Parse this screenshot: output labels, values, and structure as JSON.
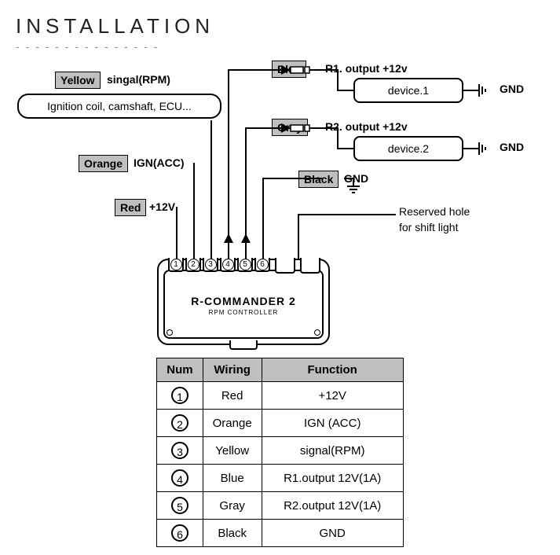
{
  "title": "INSTALLATION",
  "diagram": {
    "yellow": {
      "label": "Yellow",
      "desc": "singal(RPM)",
      "box": "Ignition coil, camshaft, ECU..."
    },
    "orange": {
      "label": "Orange",
      "desc": "IGN(ACC)"
    },
    "red": {
      "label": "Red",
      "desc": "+12V"
    },
    "blue": {
      "label": "Blue",
      "desc": "R1. output +12v",
      "device": "device.1",
      "gnd": "GND"
    },
    "gray": {
      "label": "Gray",
      "desc": "R2. output +12v",
      "device": "device.2",
      "gnd": "GND"
    },
    "black": {
      "label": "Black",
      "desc": "GND"
    },
    "reserved": "Reserved hole for shift light",
    "controller": {
      "title": "R-COMMANDER 2",
      "subtitle": "RPM CONTROLLER"
    },
    "ports": [
      "1",
      "2",
      "3",
      "4",
      "5",
      "6"
    ]
  },
  "table": {
    "headers": [
      "Num",
      "Wiring",
      "Function"
    ],
    "rows": [
      {
        "num": "1",
        "wiring": "Red",
        "function": "+12V"
      },
      {
        "num": "2",
        "wiring": "Orange",
        "function": "IGN (ACC)"
      },
      {
        "num": "3",
        "wiring": "Yellow",
        "function": "signal(RPM)"
      },
      {
        "num": "4",
        "wiring": "Blue",
        "function": "R1.output 12V(1A)"
      },
      {
        "num": "5",
        "wiring": "Gray",
        "function": "R2.output 12V(1A)"
      },
      {
        "num": "6",
        "wiring": "Black",
        "function": "GND"
      }
    ]
  },
  "colors": {
    "bg": "#ffffff",
    "box_fill": "#bfbfbf",
    "stroke": "#000000"
  }
}
